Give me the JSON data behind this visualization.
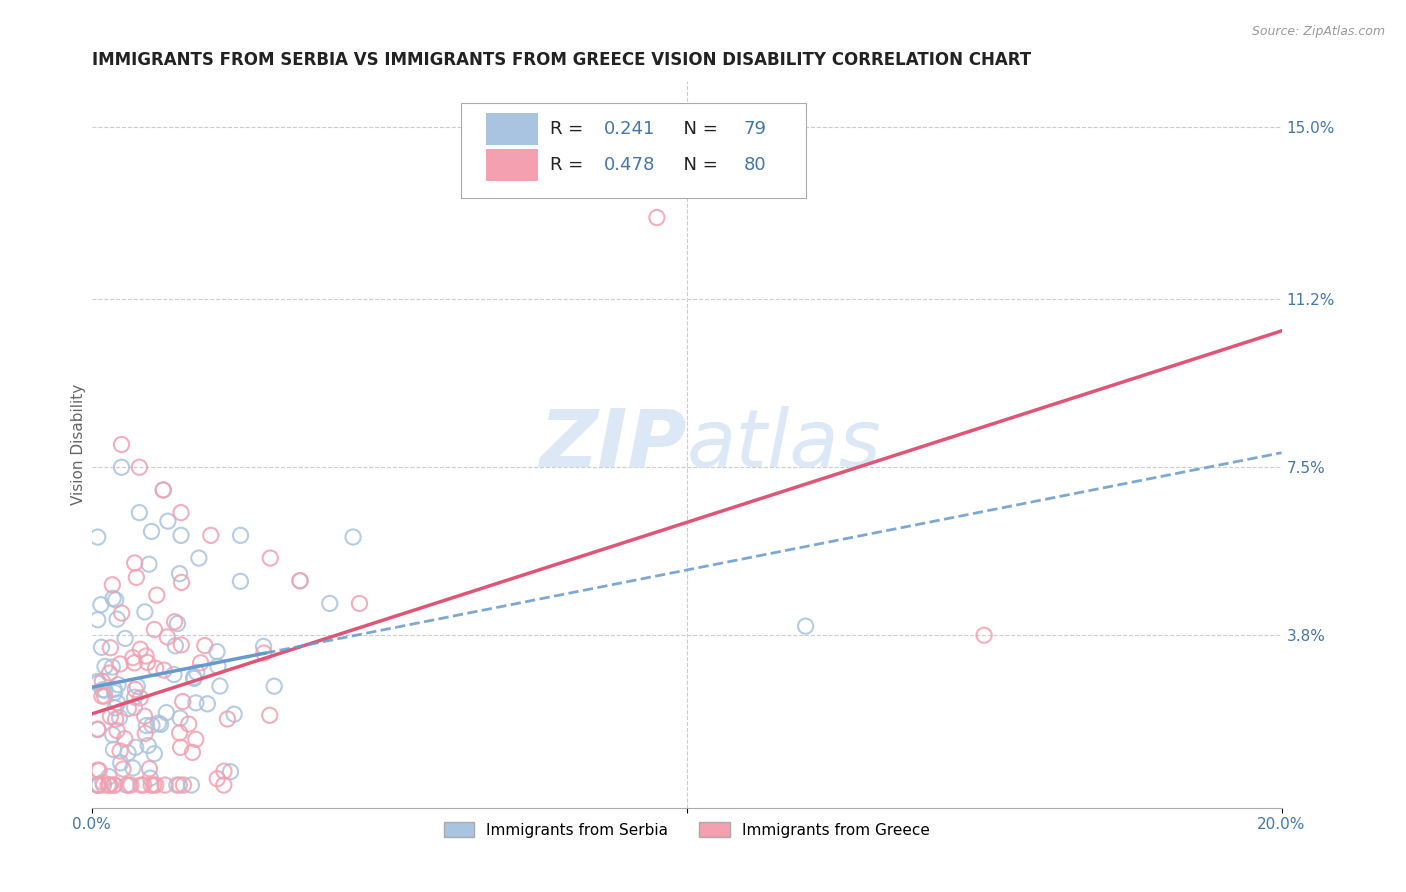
{
  "title": "IMMIGRANTS FROM SERBIA VS IMMIGRANTS FROM GREECE VISION DISABILITY CORRELATION CHART",
  "source": "Source: ZipAtlas.com",
  "xlabel": "",
  "ylabel": "Vision Disability",
  "serbia_label": "Immigrants from Serbia",
  "greece_label": "Immigrants from Greece",
  "serbia_R": 0.241,
  "serbia_N": 79,
  "greece_R": 0.478,
  "greece_N": 80,
  "xlim": [
    0.0,
    0.2
  ],
  "ylim": [
    0.0,
    0.16
  ],
  "right_ytick_positions": [
    0.038,
    0.075,
    0.112,
    0.15
  ],
  "right_ytick_labels": [
    "3.8%",
    "7.5%",
    "11.2%",
    "15.0%"
  ],
  "grid_color": "#cccccc",
  "background_color": "#ffffff",
  "serbia_color": "#a8c4e0",
  "greece_color": "#f4a0b0",
  "serbia_trend_color": "#6699cc",
  "greece_trend_color": "#e05575",
  "watermark_color": "#dce8f5",
  "title_fontsize": 12,
  "axis_label_fontsize": 11,
  "tick_label_fontsize": 11,
  "tick_color": "#4477aa",
  "serbia_trend_intercept": 0.02,
  "serbia_trend_slope": 0.3,
  "greece_trend_intercept": 0.015,
  "greece_trend_slope": 0.38
}
